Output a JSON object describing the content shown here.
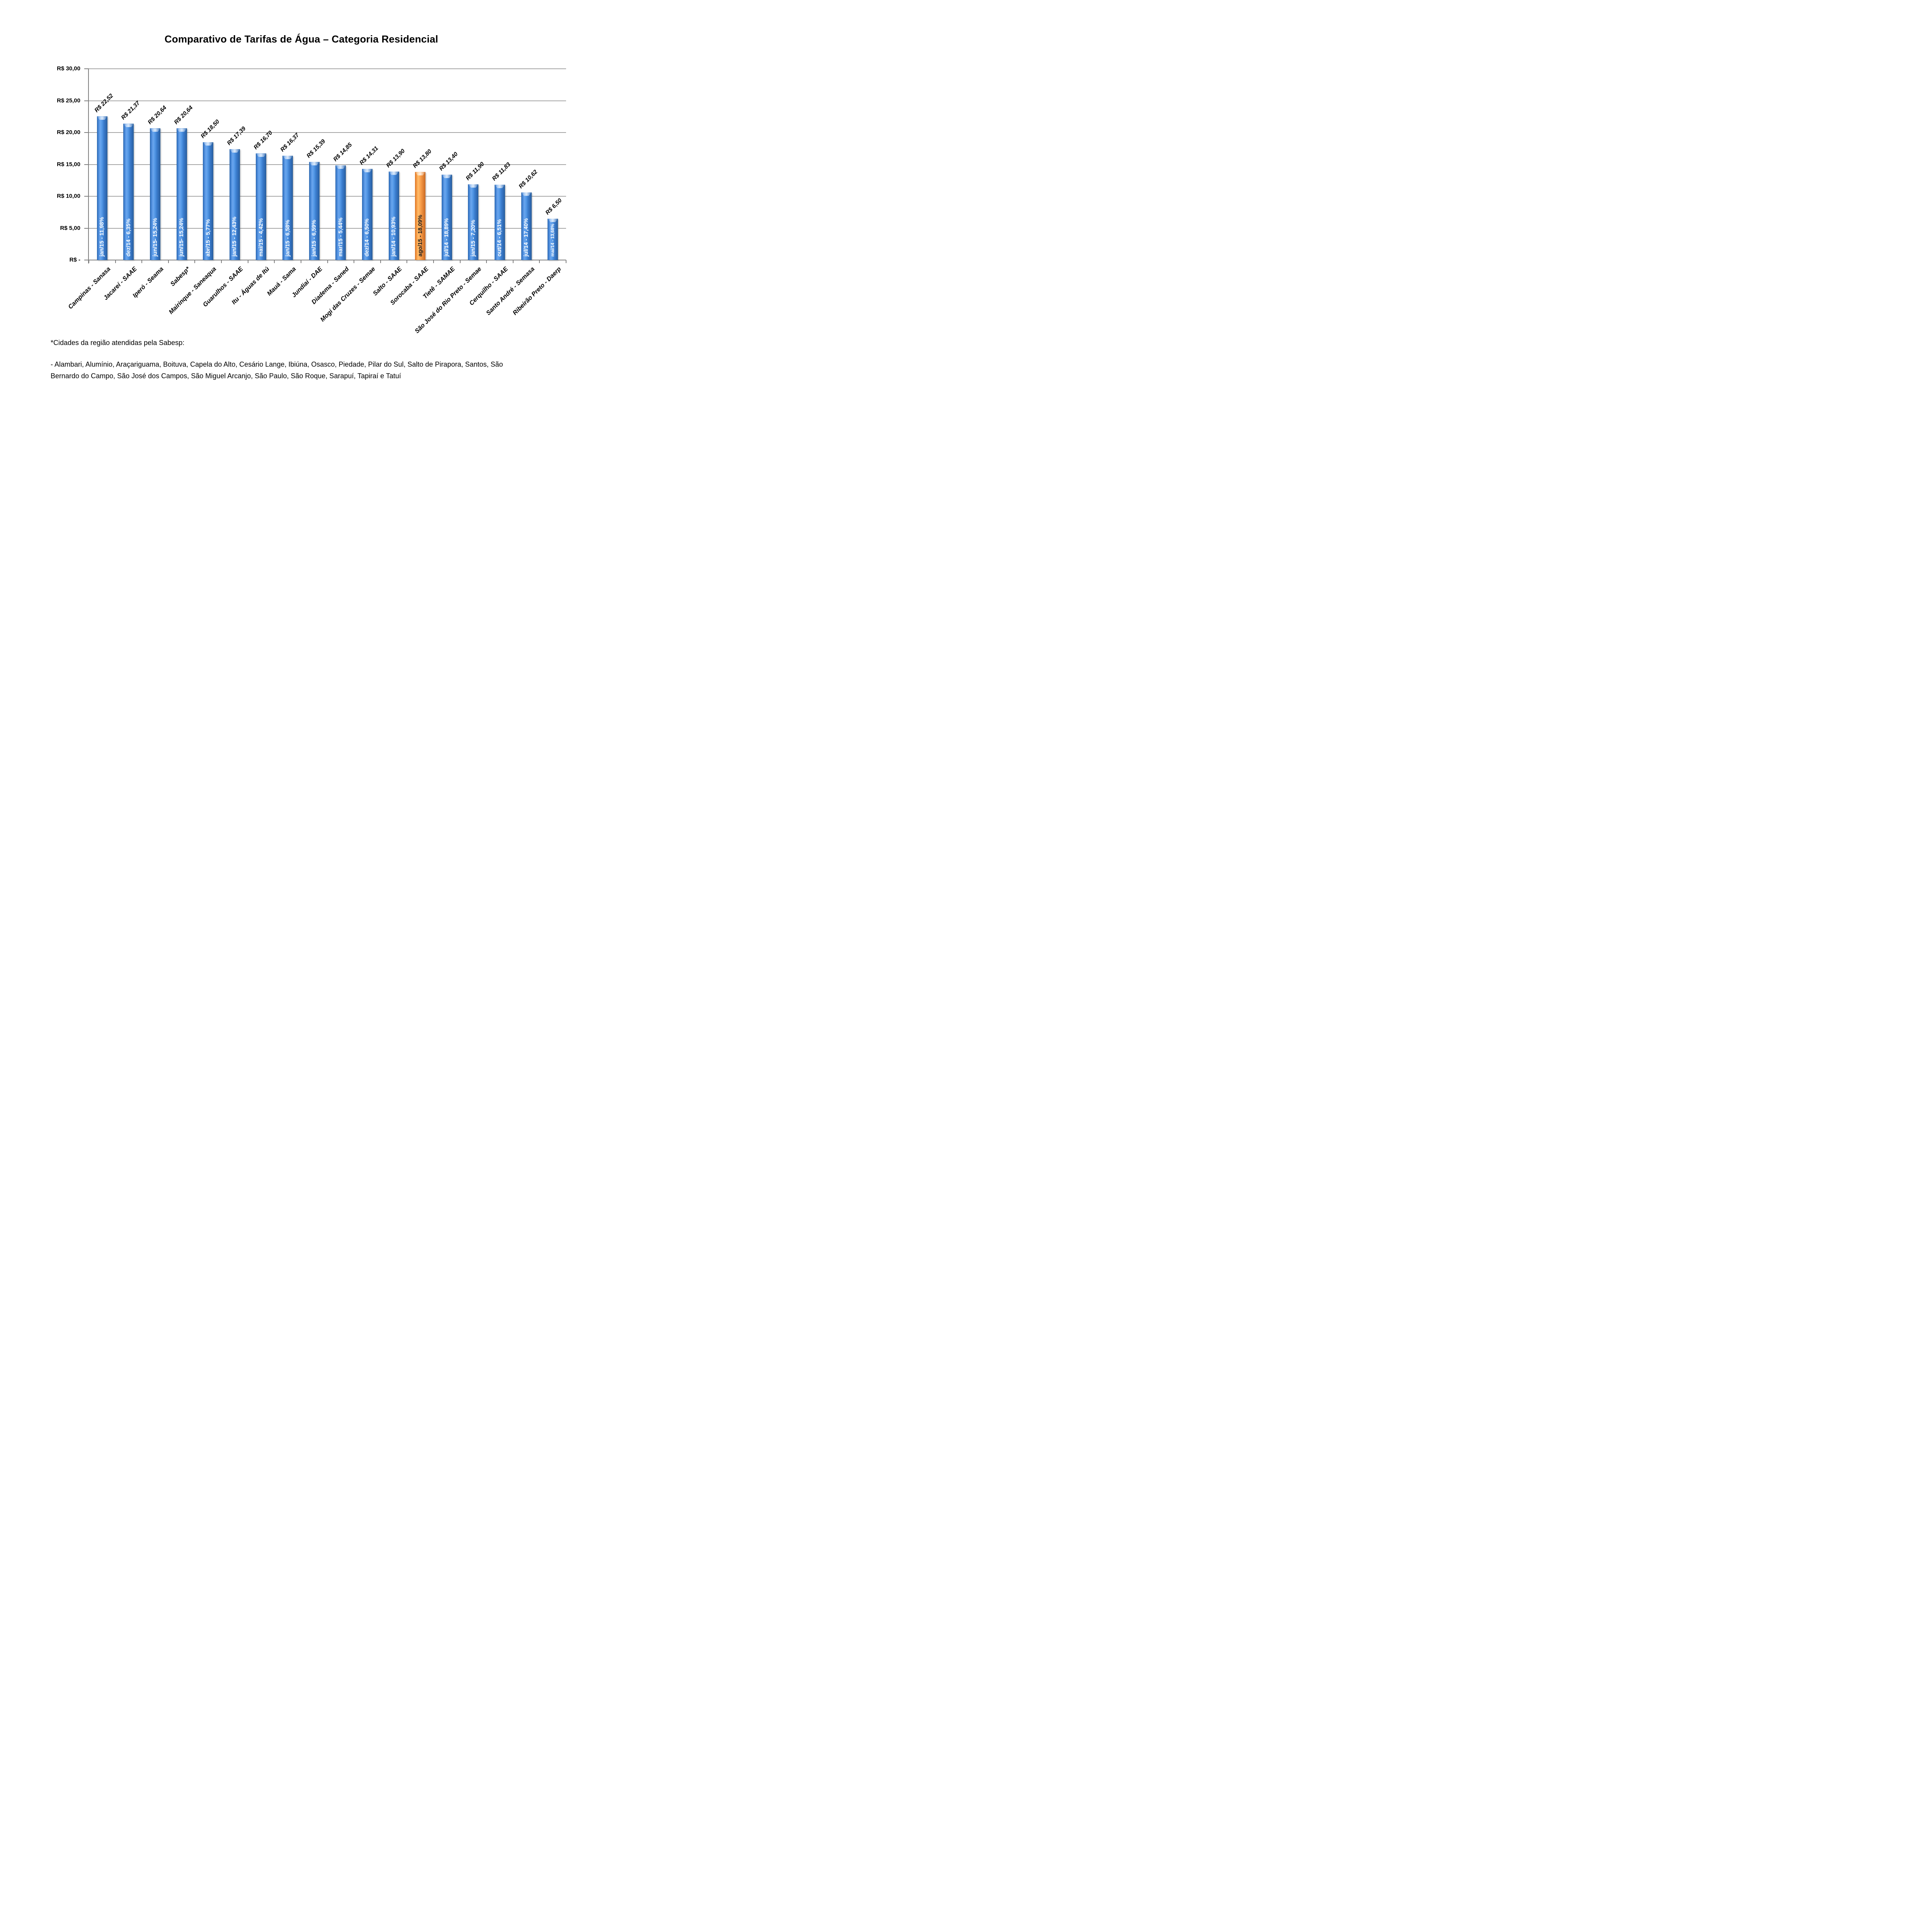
{
  "title": "Comparativo de Tarifas de Água – Categoria Residencial",
  "chart_data": {
    "type": "bar",
    "title": "Comparativo de Tarifas de Água – Categoria Residencial",
    "xlabel": "",
    "ylabel": "",
    "ylim": [
      0,
      30
    ],
    "grid": true,
    "legend": null,
    "y_ticks": [
      {
        "value": 30,
        "label": "R$ 30,00"
      },
      {
        "value": 25,
        "label": "R$ 25,00"
      },
      {
        "value": 20,
        "label": "R$ 20,00"
      },
      {
        "value": 15,
        "label": "R$ 15,00"
      },
      {
        "value": 10,
        "label": "R$ 10,00"
      },
      {
        "value": 5,
        "label": "R$ 5,00"
      },
      {
        "value": 0,
        "label": "R$ -"
      }
    ],
    "bars": [
      {
        "category": "Campinas - Sanasa",
        "value": 22.52,
        "value_label": "R$ 22,52",
        "inner_label": "jan/15 - 11,98%",
        "highlight": false
      },
      {
        "category": "Jacareí - SAAE",
        "value": 21.37,
        "value_label": "R$ 21,37",
        "inner_label": "dez/14 - 6,35%",
        "highlight": false
      },
      {
        "category": "Iperó - Seama",
        "value": 20.64,
        "value_label": "R$ 20,64",
        "inner_label": "jun/15- 15,24%",
        "highlight": false
      },
      {
        "category": "Sabesp*",
        "value": 20.64,
        "value_label": "R$ 20,64",
        "inner_label": "jun/15- 15,24%",
        "highlight": false
      },
      {
        "category": "Mairinque - Saneaqua",
        "value": 18.5,
        "value_label": "R$ 18,50",
        "inner_label": "abr/15 - 5,77%",
        "highlight": false
      },
      {
        "category": "Guarulhos - SAAE",
        "value": 17.39,
        "value_label": "R$ 17,39",
        "inner_label": "jan/15 - 12,43%",
        "highlight": false
      },
      {
        "category": "Itu - Águas de Itú",
        "value": 16.7,
        "value_label": "R$ 16,70",
        "inner_label": "mai/15 - 4,42%",
        "highlight": false
      },
      {
        "category": "Mauá - Sama",
        "value": 16.37,
        "value_label": "R$ 16,37",
        "inner_label": "jan/15 - 6,58%",
        "highlight": false
      },
      {
        "category": "Jundiaí - DAE",
        "value": 15.39,
        "value_label": "R$ 15,39",
        "inner_label": "jan/15 - 6,59%",
        "highlight": false
      },
      {
        "category": "Diadema - Saned",
        "value": 14.85,
        "value_label": "R$ 14,85",
        "inner_label": "mar/15 - 5,44%",
        "highlight": false
      },
      {
        "category": "Mogi das Cruzes - Semae",
        "value": 14.31,
        "value_label": "R$ 14,31",
        "inner_label": "dez/14 - 6,50%",
        "highlight": false
      },
      {
        "category": "Salto - SAAE",
        "value": 13.9,
        "value_label": "R$ 13,90",
        "inner_label": "jan/14 - 10,93%",
        "highlight": false
      },
      {
        "category": "Sorocaba - SAAE",
        "value": 13.8,
        "value_label": "R$ 13,80",
        "inner_label": "ago/15 - 18,09%",
        "highlight": true
      },
      {
        "category": "Tietê - SAMAE",
        "value": 13.4,
        "value_label": "R$ 13,40",
        "inner_label": "jul/14 - 18,89%",
        "highlight": false
      },
      {
        "category": "São José do Rio Preto - Semae",
        "value": 11.9,
        "value_label": "R$ 11,90",
        "inner_label": "jan/15 - 7,20%",
        "highlight": false
      },
      {
        "category": "Cerquilho - SAAE",
        "value": 11.83,
        "value_label": "R$ 11,83",
        "inner_label": "out/14 - 6,51%",
        "highlight": false
      },
      {
        "category": "Santo André - Semasa",
        "value": 10.62,
        "value_label": "R$ 10,62",
        "inner_label": "jul/14 - 17,40%",
        "highlight": false
      },
      {
        "category": "Ribeirão Preto - Daerp",
        "value": 6.5,
        "value_label": "R$ 6,50",
        "inner_label": "mai/14 - 13,68%",
        "highlight": false
      }
    ],
    "colors": {
      "bar": "#3b7fd4",
      "bar_edge": "#2a62a8",
      "highlight_bar": "#f79646",
      "highlight_edge": "#d9782d",
      "inner_label": "#ffffff",
      "inner_label_highlight": "#1c1c1c",
      "gridline": "#a6a6a6",
      "axis": "#7f7f7f",
      "text": "#000000"
    }
  },
  "footnote": {
    "heading": "*Cidades da região atendidas pela Sabesp:",
    "line1": "- Alambari, Alumínio, Araçariguama, Boituva, Capela do Alto, Cesário Lange, Ibiúna, Osasco, Piedade, Pilar do Sul, Salto de Pirapora, Santos, São",
    "line2": "Bernardo do Campo, São José dos Campos, São Miguel Arcanjo, São Paulo, São Roque, Sarapuí, Tapiraí e Tatuí"
  }
}
